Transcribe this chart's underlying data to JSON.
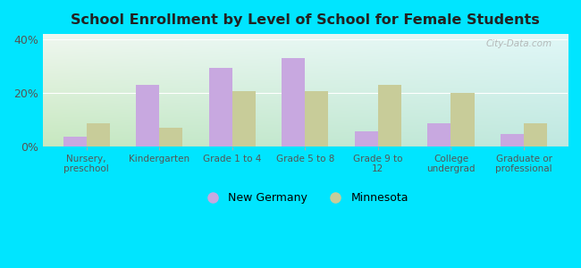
{
  "title": "School Enrollment by Level of School for Female Students",
  "categories": [
    "Nursery,\npreschool",
    "Kindergarten",
    "Grade 1 to 4",
    "Grade 5 to 8",
    "Grade 9 to\n12",
    "College\nundergrad",
    "Graduate or\nprofessional"
  ],
  "new_germany": [
    3.5,
    23.0,
    29.5,
    33.0,
    5.5,
    8.5,
    4.5
  ],
  "minnesota": [
    8.5,
    7.0,
    20.5,
    20.5,
    23.0,
    20.0,
    8.5
  ],
  "new_germany_color": "#c8a8e0",
  "minnesota_color": "#c8cc99",
  "ylim": [
    0,
    42
  ],
  "yticks": [
    0,
    20,
    40
  ],
  "ytick_labels": [
    "0%",
    "20%",
    "40%"
  ],
  "outer_bg": "#00e5ff",
  "legend_new_germany": "New Germany",
  "legend_minnesota": "Minnesota",
  "watermark": "City-Data.com",
  "bar_width": 0.32
}
